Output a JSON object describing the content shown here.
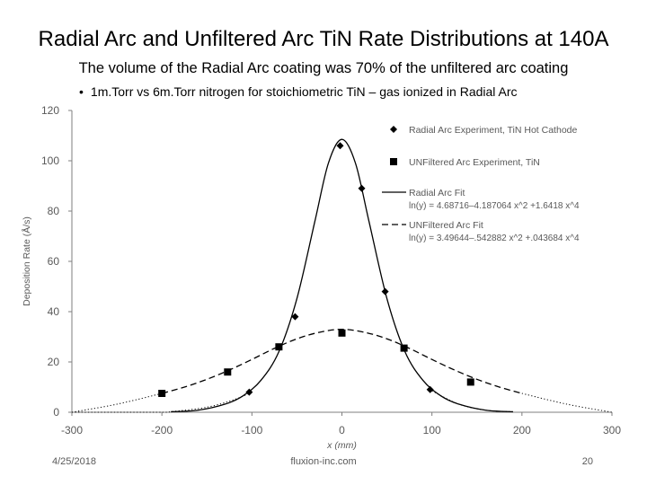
{
  "slide": {
    "title": "Radial Arc and Unfiltered Arc TiN Rate Distributions at 140A",
    "subtitle": "The volume of the Radial Arc coating was 70% of the unfiltered arc coating",
    "bullet": "1m.Torr vs 6m.Torr nitrogen for stoichiometric TiN – gas ionized in Radial Arc",
    "bullet_marker": "•"
  },
  "footer": {
    "date": "4/25/2018",
    "site": "fluxion-inc.com",
    "page": "20"
  },
  "chart_data": {
    "type": "scatter",
    "xlabel": "x (mm)",
    "ylabel": "Deposition Rate (Å/s)",
    "xlim": [
      -300,
      300
    ],
    "ylim": [
      0,
      120
    ],
    "xticks": [
      -300,
      -200,
      -100,
      0,
      100,
      200,
      300
    ],
    "yticks": [
      0,
      20,
      40,
      60,
      80,
      100,
      120
    ],
    "grid": false,
    "legend_position": "top-right",
    "series": [
      {
        "name": "Radial Arc Experiment, TiN Hot Cathode",
        "kind": "markers",
        "marker": "diamond",
        "x": [
          -103,
          -52,
          -2,
          22,
          48,
          98
        ],
        "y": [
          8,
          38,
          106,
          89,
          48,
          9
        ]
      },
      {
        "name": "UNFiltered Arc Experiment, TiN",
        "kind": "markers",
        "marker": "square",
        "x": [
          -200,
          -127,
          -70,
          0,
          69,
          143
        ],
        "y": [
          7.5,
          16,
          26,
          31.5,
          25.5,
          12
        ]
      },
      {
        "name": "Radial Arc Fit",
        "formula": "ln(y) = 4.68716–4.187064 x^2 +1.6418 x^4",
        "kind": "line",
        "dash": "solid",
        "x": [
          -190,
          -160,
          -130,
          -110,
          -90,
          -70,
          -50,
          -30,
          -15,
          0,
          15,
          30,
          50,
          70,
          90,
          110,
          130,
          160,
          190
        ],
        "y": [
          0.2,
          0.8,
          3.2,
          6.5,
          12.7,
          24.1,
          45.2,
          76,
          99.1,
          108.5,
          99.1,
          76,
          45.2,
          24.1,
          12.7,
          6.5,
          3.2,
          0.8,
          0.2
        ]
      },
      {
        "name": "UNFiltered Arc Fit",
        "formula": "ln(y) = 3.49644–.542882 x^2 +.043684 x^4",
        "kind": "line",
        "dash": "dashed",
        "x": [
          -200,
          -175,
          -150,
          -125,
          -100,
          -75,
          -50,
          -25,
          0,
          25,
          50,
          75,
          100,
          125,
          150,
          175,
          200
        ],
        "y": [
          7.5,
          10,
          13.1,
          16.8,
          21,
          25.4,
          29.2,
          31.8,
          33,
          31.8,
          29.2,
          25.4,
          21,
          16.8,
          13.1,
          10,
          7.5
        ]
      },
      {
        "name": "Radial Arc Fit (extrapolated)",
        "kind": "line",
        "dash": "dotted",
        "show_in_legend": false,
        "x": [
          -300,
          -250,
          -200,
          -190,
          -150,
          -120,
          -100
        ],
        "y": [
          0,
          0,
          0,
          0.2,
          2,
          5,
          8
        ]
      },
      {
        "name": "UNFiltered Arc Fit (extrapolated)",
        "kind": "line",
        "dash": "dotted",
        "show_in_legend": false,
        "x": [
          -300,
          -250,
          -200
        ],
        "y": [
          0,
          3.2,
          7.5
        ]
      },
      {
        "name": "UNFiltered Arc Fit (extrapolated, right)",
        "kind": "line",
        "dash": "dotted",
        "show_in_legend": false,
        "x": [
          200,
          250,
          300
        ],
        "y": [
          7.5,
          3.2,
          0
        ]
      },
      {
        "name": "Radial Arc Fit (extrapolated, right)",
        "kind": "line",
        "dash": "dotted",
        "show_in_legend": false,
        "x": [
          100,
          130,
          160,
          190
        ],
        "y": [
          8.5,
          3.2,
          0.8,
          0.2
        ]
      }
    ],
    "colors": {
      "series": "#000000",
      "axis": "#7f7f7f",
      "text": "#595959"
    }
  }
}
